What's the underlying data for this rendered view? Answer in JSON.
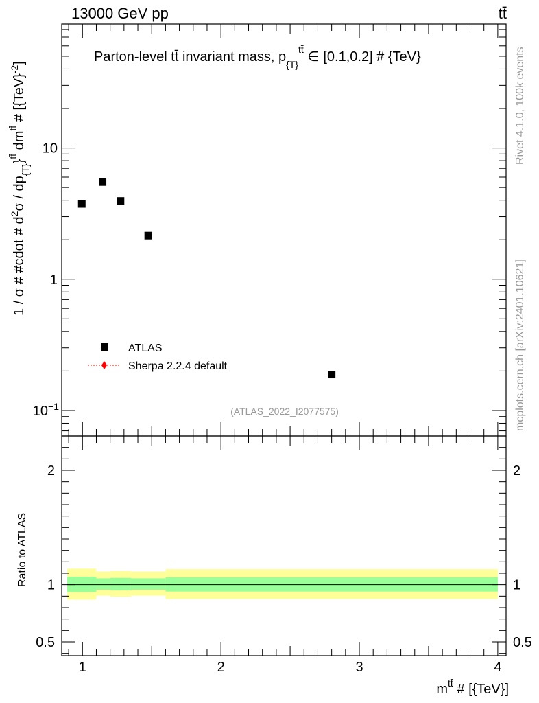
{
  "header": {
    "energy_label": "13000 GeV pp",
    "process_label": "tt̄"
  },
  "side_labels": {
    "rivet": "Rivet 4.1.0,  100k events",
    "mcplots": "mcplots.cern.ch [arXiv:2401.10621]"
  },
  "colors": {
    "data_marker": "#000000",
    "mc_line": "#ff0000",
    "band_inner": "#99ff99",
    "band_outer": "#ffff99",
    "watermark": "#999999"
  },
  "chart_data": [
    {
      "type": "scatter",
      "title": "Parton-level tt̄ invariant mass, p_{T}^{tt̄} ∈ [0.1,0.2] # {TeV}",
      "title_parts": {
        "main": "Parton-level tt̄ invariant mass, p",
        "sub": "{T}",
        "sup": "tt̄",
        "range": " ∈ [0.1,0.2] # {TeV}"
      },
      "ylabel": "1 / σ # #cdot # d²σ / dp_{T}^{tt̄} dm^{tt̄} # [{TeV}^{-2}]",
      "ylabel_parts": {
        "a": "1 / σ # #cdot # d",
        "b_sup": "2",
        "c": "σ / dp",
        "d_sub": "{T}",
        "e": "}",
        "f_sup": "tt̄",
        "g": " dm",
        "h_sup": "tt̄",
        "i": " # [{TeV}",
        "j_sup": "-2",
        "k": "]"
      },
      "yscale": "log",
      "xlim": [
        0.85,
        4.06
      ],
      "ylim": [
        0.064,
        88
      ],
      "ytick_labels": [
        {
          "value": 10,
          "label": "10"
        },
        {
          "value": 1,
          "label": "1"
        },
        {
          "value": 0.1,
          "label": "10",
          "sup": "−1"
        }
      ],
      "series": [
        {
          "name": "ATLAS",
          "marker": "square",
          "x": [
            0.995,
            1.145,
            1.275,
            1.475,
            2.8
          ],
          "y": [
            3.75,
            5.5,
            3.95,
            2.15,
            0.188
          ]
        },
        {
          "name": "Sherpa 2.2.4 default",
          "marker": "diamond",
          "line": "dotted",
          "x": [],
          "y": []
        }
      ],
      "legend_position": "middle-left",
      "watermark": "(ATLAS_2022_I2077575)"
    },
    {
      "type": "area",
      "ylabel": "Ratio to ATLAS",
      "xlabel": "m^{tt̄} # [{TeV}]",
      "xlabel_parts": {
        "main": "m",
        "sup": "tt̄",
        "rest": " # [{TeV}]"
      },
      "xlim": [
        0.85,
        4.06
      ],
      "ylim": [
        0.38,
        2.3
      ],
      "xtick_labels": [
        {
          "value": 1,
          "label": "1"
        },
        {
          "value": 2,
          "label": "2"
        },
        {
          "value": 3,
          "label": "3"
        },
        {
          "value": 4,
          "label": "4"
        }
      ],
      "ytick_labels": [
        {
          "value": 0.5,
          "label": "0.5"
        },
        {
          "value": 1,
          "label": "1"
        },
        {
          "value": 2,
          "label": "2"
        }
      ],
      "reference_line": 1,
      "bins": [
        {
          "lo": 0.89,
          "hi": 1.1,
          "inner": [
            0.935,
            1.07
          ],
          "outer": [
            0.87,
            1.14
          ]
        },
        {
          "lo": 1.1,
          "hi": 1.2,
          "inner": [
            0.955,
            1.055
          ],
          "outer": [
            0.905,
            1.115
          ]
        },
        {
          "lo": 1.2,
          "hi": 1.35,
          "inner": [
            0.95,
            1.06
          ],
          "outer": [
            0.895,
            1.12
          ]
        },
        {
          "lo": 1.35,
          "hi": 1.6,
          "inner": [
            0.955,
            1.055
          ],
          "outer": [
            0.905,
            1.115
          ]
        },
        {
          "lo": 1.6,
          "hi": 4.0,
          "inner": [
            0.94,
            1.065
          ],
          "outer": [
            0.875,
            1.135
          ]
        }
      ]
    }
  ]
}
